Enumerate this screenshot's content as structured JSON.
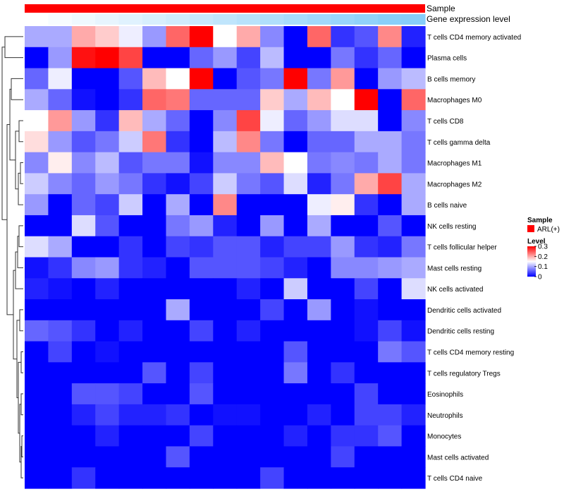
{
  "chart_data": {
    "type": "heatmap",
    "title": "",
    "xlabel": "",
    "ylabel": "",
    "annotation_tracks": [
      "Sample",
      "Gene expression level"
    ],
    "sample_annotation_color": "#ff0000",
    "gene_expression_gradient": [
      "#ffffff",
      "#87cefa"
    ],
    "rows": [
      "T cells CD4 memory activated",
      "Plasma cells",
      "B cells memory",
      "Macrophages M0",
      "T cells CD8",
      "T cells gamma delta",
      "Macrophages M1",
      "Macrophages M2",
      "B cells naive",
      "NK cells resting",
      "T cells follicular helper",
      "Mast cells resting",
      "NK cells activated",
      "Dendritic cells activated",
      "Dendritic cells resting",
      "T cells CD4 memory resting",
      "T cells regulatory  Tregs",
      "Eosinophils",
      "Neutrophils",
      "Monocytes",
      "Mast cells activated",
      "T cells CD4 naive"
    ],
    "columns": 17,
    "values": [
      [
        0.1,
        0.1,
        0.2,
        0.18,
        0.14,
        0.09,
        0.24,
        0.3,
        0.15,
        0.2,
        0.08,
        0.0,
        0.24,
        0.03,
        0.05,
        0.22,
        0.02
      ],
      [
        0.0,
        0.09,
        0.29,
        0.3,
        0.26,
        0.0,
        0.0,
        0.06,
        0.09,
        0.04,
        0.11,
        0.0,
        0.0,
        0.07,
        0.03,
        0.06,
        0.0
      ],
      [
        0.06,
        0.14,
        0.0,
        0.0,
        0.05,
        0.19,
        0.15,
        0.3,
        0.0,
        0.05,
        0.07,
        0.3,
        0.07,
        0.21,
        0.0,
        0.09,
        0.11
      ],
      [
        0.1,
        0.06,
        0.01,
        0.0,
        0.03,
        0.24,
        0.23,
        0.06,
        0.06,
        0.06,
        0.18,
        0.1,
        0.19,
        0.15,
        0.3,
        0.0,
        0.24
      ],
      [
        0.15,
        0.21,
        0.09,
        0.03,
        0.19,
        0.1,
        0.06,
        0.0,
        0.08,
        0.26,
        0.14,
        0.06,
        0.09,
        0.13,
        0.13,
        0.0,
        0.08
      ],
      [
        0.17,
        0.09,
        0.05,
        0.07,
        0.12,
        0.23,
        0.03,
        0.0,
        0.11,
        0.22,
        0.07,
        0.0,
        0.06,
        0.06,
        0.1,
        0.1,
        0.07
      ],
      [
        0.08,
        0.16,
        0.08,
        0.11,
        0.05,
        0.07,
        0.07,
        0.01,
        0.08,
        0.08,
        0.19,
        0.15,
        0.07,
        0.08,
        0.07,
        0.1,
        0.07
      ],
      [
        0.12,
        0.08,
        0.06,
        0.09,
        0.07,
        0.03,
        0.01,
        0.04,
        0.12,
        0.07,
        0.05,
        0.13,
        0.02,
        0.07,
        0.2,
        0.26,
        0.1
      ],
      [
        0.09,
        0.0,
        0.06,
        0.04,
        0.12,
        0.0,
        0.1,
        0.0,
        0.22,
        0.0,
        0.0,
        0.0,
        0.14,
        0.16,
        0.03,
        0.0,
        0.1
      ],
      [
        0.0,
        0.0,
        0.13,
        0.05,
        0.0,
        0.0,
        0.07,
        0.09,
        0.02,
        0.0,
        0.09,
        0.0,
        0.1,
        0.0,
        0.0,
        0.05,
        0.0
      ],
      [
        0.13,
        0.1,
        0.0,
        0.0,
        0.03,
        0.0,
        0.04,
        0.03,
        0.05,
        0.05,
        0.02,
        0.04,
        0.04,
        0.09,
        0.03,
        0.02,
        0.07
      ],
      [
        0.01,
        0.03,
        0.08,
        0.09,
        0.03,
        0.02,
        0.0,
        0.05,
        0.05,
        0.05,
        0.04,
        0.02,
        0.0,
        0.08,
        0.08,
        0.09,
        0.1
      ],
      [
        0.02,
        0.01,
        0.0,
        0.02,
        0.0,
        0.0,
        0.0,
        0.0,
        0.0,
        0.02,
        0.0,
        0.12,
        0.0,
        0.0,
        0.04,
        0.0,
        0.13
      ],
      [
        0.0,
        0.0,
        0.0,
        0.0,
        0.0,
        0.0,
        0.1,
        0.0,
        0.0,
        0.0,
        0.04,
        0.0,
        0.09,
        0.0,
        0.01,
        0.0,
        0.0
      ],
      [
        0.06,
        0.05,
        0.03,
        0.0,
        0.02,
        0.0,
        0.0,
        0.04,
        0.0,
        0.02,
        0.0,
        0.0,
        0.0,
        0.0,
        0.01,
        0.04,
        0.01
      ],
      [
        0.0,
        0.04,
        0.0,
        0.01,
        0.0,
        0.0,
        0.0,
        0.0,
        0.0,
        0.0,
        0.0,
        0.05,
        0.0,
        0.0,
        0.0,
        0.07,
        0.05
      ],
      [
        0.0,
        0.0,
        0.0,
        0.0,
        0.0,
        0.05,
        0.0,
        0.04,
        0.0,
        0.0,
        0.0,
        0.07,
        0.0,
        0.03,
        0.0,
        0.0,
        0.0
      ],
      [
        0.0,
        0.0,
        0.05,
        0.05,
        0.04,
        0.0,
        0.0,
        0.05,
        0.0,
        0.0,
        0.0,
        0.0,
        0.0,
        0.0,
        0.04,
        0.0,
        0.0
      ],
      [
        0.0,
        0.0,
        0.02,
        0.04,
        0.02,
        0.02,
        0.03,
        0.0,
        0.01,
        0.01,
        0.0,
        0.0,
        0.02,
        0.0,
        0.04,
        0.04,
        0.02
      ],
      [
        0.0,
        0.0,
        0.0,
        0.02,
        0.0,
        0.0,
        0.0,
        0.04,
        0.0,
        0.0,
        0.0,
        0.02,
        0.0,
        0.03,
        0.03,
        0.05,
        0.0
      ],
      [
        0.0,
        0.0,
        0.0,
        0.0,
        0.0,
        0.0,
        0.05,
        0.0,
        0.0,
        0.0,
        0.0,
        0.0,
        0.0,
        0.04,
        0.0,
        0.0,
        0.0
      ],
      [
        0.0,
        0.0,
        0.03,
        0.0,
        0.0,
        0.0,
        0.0,
        0.0,
        0.0,
        0.0,
        0.04,
        0.0,
        0.0,
        0.0,
        0.0,
        0.0,
        0.0
      ]
    ],
    "color_scale": {
      "min": 0,
      "max": 0.3,
      "colors": [
        "#0000ff",
        "#ffffff",
        "#ff0000"
      ],
      "midpoint": 0.15
    },
    "legend": {
      "position": "right",
      "sample_title": "Sample",
      "sample_label": "ARL(+)",
      "level_title": "Level",
      "level_ticks": [
        {
          "value": 0.3,
          "label": "0.3"
        },
        {
          "value": 0.2,
          "label": "0.2"
        },
        {
          "value": 0.1,
          "label": "0.1"
        },
        {
          "value": 0.0,
          "label": "0"
        }
      ]
    }
  }
}
